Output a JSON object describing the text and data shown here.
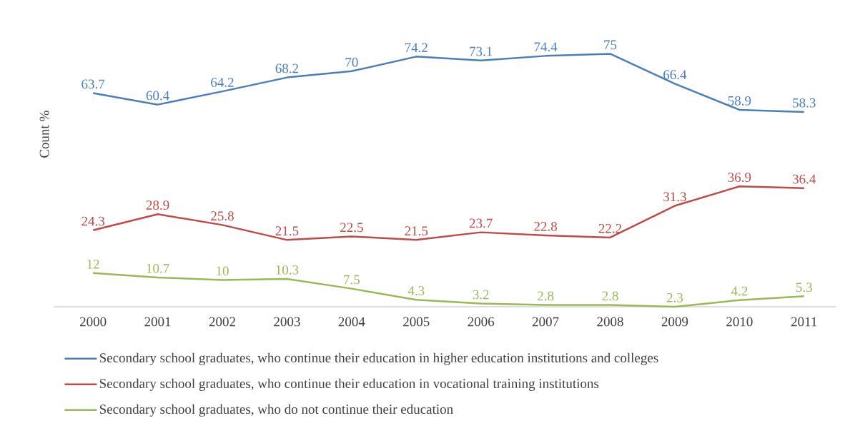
{
  "chart_data": {
    "type": "line",
    "ylabel": "Count %",
    "categories": [
      "2000",
      "2001",
      "2002",
      "2003",
      "2004",
      "2005",
      "2006",
      "2007",
      "2008",
      "2009",
      "2010",
      "2011"
    ],
    "series": [
      {
        "name": "Secondary school graduates, who continue their education in higher education institutions and colleges",
        "color": "#4a7ebb",
        "values": [
          63.7,
          60.4,
          64.2,
          68.2,
          70,
          74.2,
          73.1,
          74.4,
          75,
          66.4,
          58.9,
          58.3
        ]
      },
      {
        "name": "Secondary school graduates, who continue their education in vocational training institutions",
        "color": "#be4b48",
        "values": [
          24.3,
          28.9,
          25.8,
          21.5,
          22.5,
          21.5,
          23.7,
          22.8,
          22.2,
          31.3,
          36.9,
          36.4
        ]
      },
      {
        "name": "Secondary school graduates, who do not continue their education",
        "color": "#98b954",
        "values": [
          12,
          10.7,
          10,
          10.3,
          7.5,
          4.3,
          3.2,
          2.8,
          2.8,
          2.3,
          4.2,
          5.3
        ]
      }
    ],
    "tick_labels": "x",
    "data_labels": true,
    "legend": "bottom",
    "line_style": "solid"
  }
}
